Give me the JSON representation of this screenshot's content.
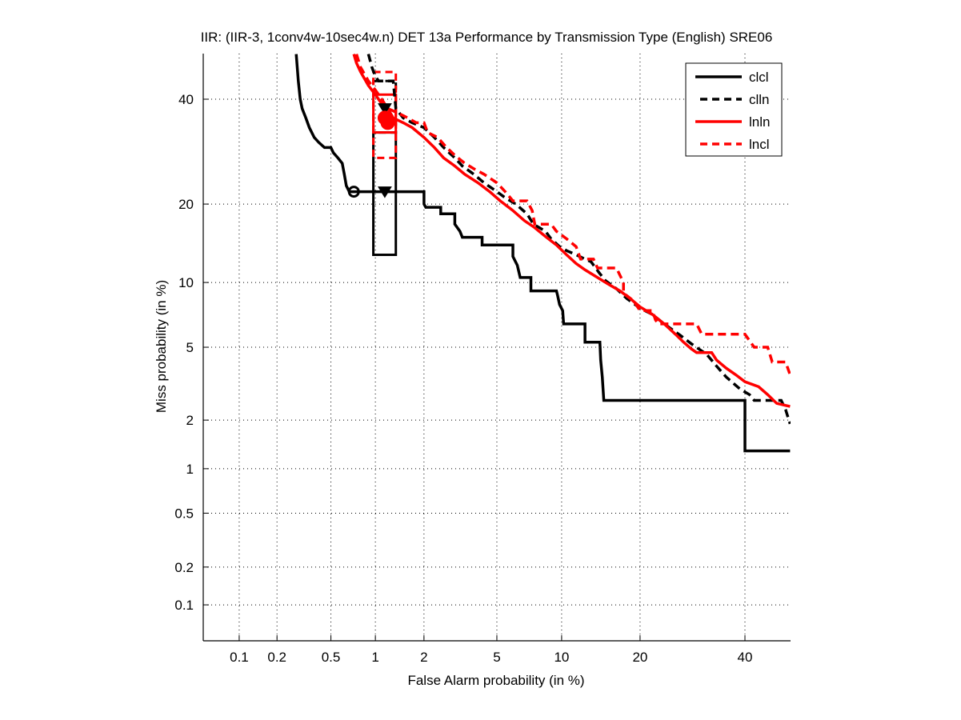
{
  "chart_data": {
    "type": "line",
    "title": "IIR: (IIR-3, 1conv4w-10sec4w.n) DET 13a Performance by Transmission Type (English) SRE06",
    "xlabel": "False Alarm probability (in %)",
    "ylabel": "Miss probability (in %)",
    "xscale": "probit",
    "yscale": "probit",
    "xlim": [
      0.05,
      50
    ],
    "ylim": [
      0.05,
      50
    ],
    "grid": true,
    "legend_position": "top-right",
    "xticks": [
      0.1,
      0.2,
      0.5,
      1,
      2,
      5,
      10,
      20,
      40
    ],
    "xtick_labels": [
      "0.1",
      "0.2",
      "0.5",
      "1",
      "2",
      "5",
      "10",
      "20",
      "40"
    ],
    "yticks": [
      0.1,
      0.2,
      0.5,
      1,
      2,
      5,
      10,
      20,
      40
    ],
    "ytick_labels": [
      "0.1",
      "0.2",
      "0.5",
      "1",
      "2",
      "5",
      "10",
      "20",
      "40"
    ],
    "series": [
      {
        "name": "clcl",
        "color": "#000000",
        "style": "solid",
        "points": [
          [
            0.28,
            50
          ],
          [
            0.29,
            44
          ],
          [
            0.3,
            40
          ],
          [
            0.31,
            38
          ],
          [
            0.33,
            36
          ],
          [
            0.35,
            34
          ],
          [
            0.38,
            32
          ],
          [
            0.41,
            31
          ],
          [
            0.45,
            30
          ],
          [
            0.5,
            30
          ],
          [
            0.52,
            29
          ],
          [
            0.56,
            28
          ],
          [
            0.6,
            27
          ],
          [
            0.62,
            25
          ],
          [
            0.64,
            23
          ],
          [
            0.67,
            22
          ],
          [
            0.7,
            22
          ],
          [
            1.0,
            22
          ],
          [
            1.2,
            22
          ],
          [
            1.4,
            22
          ],
          [
            2.0,
            22
          ],
          [
            2.0,
            20
          ],
          [
            2.05,
            19.5
          ],
          [
            2.5,
            19.5
          ],
          [
            2.5,
            18.5
          ],
          [
            3.0,
            18.5
          ],
          [
            3.0,
            17
          ],
          [
            3.2,
            16
          ],
          [
            3.3,
            15.2
          ],
          [
            4.2,
            15.2
          ],
          [
            4.2,
            14.2
          ],
          [
            6.0,
            14.2
          ],
          [
            6.0,
            12.8
          ],
          [
            6.3,
            11.8
          ],
          [
            6.5,
            10.5
          ],
          [
            7.3,
            10.5
          ],
          [
            7.3,
            9.2
          ],
          [
            9.5,
            9.2
          ],
          [
            9.6,
            8.8
          ],
          [
            9.8,
            8.0
          ],
          [
            10.1,
            7.5
          ],
          [
            10.2,
            6.5
          ],
          [
            12.5,
            6.5
          ],
          [
            12.5,
            5.3
          ],
          [
            14.3,
            5.3
          ],
          [
            14.4,
            4.3
          ],
          [
            14.6,
            3.5
          ],
          [
            14.8,
            2.6
          ],
          [
            20,
            2.6
          ],
          [
            30,
            2.6
          ],
          [
            40,
            2.6
          ],
          [
            40,
            1.3
          ],
          [
            50,
            1.3
          ]
        ]
      },
      {
        "name": "clln",
        "color": "#000000",
        "style": "dashed",
        "points": [
          [
            0.9,
            50
          ],
          [
            0.95,
            47
          ],
          [
            1.0,
            45
          ],
          [
            1.05,
            44
          ],
          [
            1.2,
            44
          ],
          [
            1.3,
            44
          ],
          [
            1.35,
            38
          ],
          [
            1.5,
            36
          ],
          [
            1.7,
            35
          ],
          [
            2.0,
            34
          ],
          [
            2.3,
            32
          ],
          [
            2.6,
            30
          ],
          [
            3.0,
            28
          ],
          [
            3.3,
            26.5
          ],
          [
            3.8,
            25
          ],
          [
            4.3,
            23.5
          ],
          [
            5.0,
            22
          ],
          [
            5.5,
            21
          ],
          [
            6.2,
            20
          ],
          [
            7.0,
            18.5
          ],
          [
            7.5,
            17
          ],
          [
            8.5,
            16
          ],
          [
            9.0,
            15
          ],
          [
            9.8,
            14
          ],
          [
            10.5,
            13.5
          ],
          [
            11.5,
            13
          ],
          [
            12.5,
            12.5
          ],
          [
            13.2,
            12.2
          ],
          [
            14.2,
            11
          ],
          [
            15,
            10.2
          ],
          [
            16.5,
            9.4
          ],
          [
            18,
            8.5
          ],
          [
            20,
            7.7
          ],
          [
            22,
            7.2
          ],
          [
            24,
            6.5
          ],
          [
            27,
            5.7
          ],
          [
            29,
            5.2
          ],
          [
            32,
            4.6
          ],
          [
            34,
            4.0
          ],
          [
            36,
            3.5
          ],
          [
            39,
            3.0
          ],
          [
            41,
            2.8
          ],
          [
            42,
            2.6
          ],
          [
            45,
            2.6
          ],
          [
            48,
            2.6
          ],
          [
            49,
            2.3
          ],
          [
            50,
            1.9
          ]
        ]
      },
      {
        "name": "lnln",
        "color": "#ff0000",
        "style": "solid",
        "points": [
          [
            0.72,
            50
          ],
          [
            0.75,
            48
          ],
          [
            0.8,
            46
          ],
          [
            0.9,
            43
          ],
          [
            1.0,
            41
          ],
          [
            1.1,
            39
          ],
          [
            1.2,
            38
          ],
          [
            1.3,
            36
          ],
          [
            1.5,
            35
          ],
          [
            1.7,
            34
          ],
          [
            2.0,
            32
          ],
          [
            2.3,
            30
          ],
          [
            2.6,
            28
          ],
          [
            3.0,
            26.5
          ],
          [
            3.4,
            25
          ],
          [
            4.0,
            23.5
          ],
          [
            4.6,
            22
          ],
          [
            5.2,
            20.5
          ],
          [
            6.0,
            19
          ],
          [
            6.8,
            17.5
          ],
          [
            7.6,
            16.5
          ],
          [
            8.5,
            15.3
          ],
          [
            9.5,
            14.2
          ],
          [
            10.5,
            13.0
          ],
          [
            11.5,
            12.0
          ],
          [
            12.5,
            11.3
          ],
          [
            14,
            10.5
          ],
          [
            15.5,
            9.8
          ],
          [
            17,
            9.2
          ],
          [
            18.5,
            8.5
          ],
          [
            20,
            7.8
          ],
          [
            22,
            7.2
          ],
          [
            24,
            6.5
          ],
          [
            26,
            5.8
          ],
          [
            27.5,
            5.3
          ],
          [
            29,
            4.9
          ],
          [
            30,
            4.7
          ],
          [
            33,
            4.7
          ],
          [
            34,
            4.3
          ],
          [
            36,
            3.9
          ],
          [
            38,
            3.6
          ],
          [
            40,
            3.3
          ],
          [
            43,
            3.1
          ],
          [
            45,
            2.8
          ],
          [
            47,
            2.5
          ],
          [
            50,
            2.4
          ]
        ]
      },
      {
        "name": "lncl",
        "color": "#ff0000",
        "style": "dashed",
        "points": [
          [
            0.75,
            50
          ],
          [
            0.8,
            47
          ],
          [
            0.9,
            44
          ],
          [
            1.0,
            42
          ],
          [
            1.1,
            40
          ],
          [
            1.2,
            38
          ],
          [
            1.4,
            37
          ],
          [
            1.6,
            36
          ],
          [
            1.8,
            35
          ],
          [
            2.0,
            35
          ],
          [
            2.1,
            33
          ],
          [
            2.4,
            32
          ],
          [
            2.7,
            30
          ],
          [
            3.0,
            28.5
          ],
          [
            3.4,
            27
          ],
          [
            3.8,
            26
          ],
          [
            4.3,
            25
          ],
          [
            5.0,
            23.5
          ],
          [
            5.5,
            22
          ],
          [
            6.0,
            20.5
          ],
          [
            7.0,
            20.5
          ],
          [
            7.4,
            19
          ],
          [
            7.6,
            17
          ],
          [
            9.0,
            17
          ],
          [
            9.5,
            16
          ],
          [
            10.5,
            15
          ],
          [
            11.5,
            14
          ],
          [
            12.0,
            12.5
          ],
          [
            13.5,
            12.5
          ],
          [
            14,
            11.5
          ],
          [
            16.5,
            11.5
          ],
          [
            17.5,
            10
          ],
          [
            17.5,
            9.0
          ],
          [
            19,
            8.3
          ],
          [
            20,
            7.5
          ],
          [
            22,
            7.5
          ],
          [
            22.5,
            6.8
          ],
          [
            23,
            6.5
          ],
          [
            30,
            6.5
          ],
          [
            31,
            5.8
          ],
          [
            40,
            5.8
          ],
          [
            42,
            5.0
          ],
          [
            45,
            5.0
          ],
          [
            46,
            4.2
          ],
          [
            49,
            4.2
          ],
          [
            50,
            3.6
          ]
        ]
      }
    ],
    "markers": [
      {
        "series": "clcl",
        "type": "circle",
        "x": 0.72,
        "y": 22
      },
      {
        "series": "clcl",
        "type": "down-triangle",
        "x": 1.15,
        "y": 22
      },
      {
        "series": "clln",
        "type": "down-triangle",
        "x": 1.15,
        "y": 38
      },
      {
        "series": "lnln",
        "type": "filled-circle",
        "x": 1.15,
        "y": 36
      },
      {
        "series": "lncl",
        "type": "filled-circle",
        "x": 1.2,
        "y": 35
      }
    ],
    "confidence_boxes": [
      {
        "series": "clcl",
        "style": "solid",
        "color": "#000000",
        "x": [
          0.97,
          1.35
        ],
        "y": [
          13,
          33
        ]
      },
      {
        "series": "clln",
        "style": "dashed",
        "color": "#000000",
        "x": [
          0.97,
          1.35
        ],
        "y": [
          33,
          44
        ]
      },
      {
        "series": "lnln",
        "style": "solid",
        "color": "#ff0000",
        "x": [
          0.97,
          1.35
        ],
        "y": [
          33,
          41
        ]
      },
      {
        "series": "lncl",
        "style": "dashed",
        "color": "#ff0000",
        "x": [
          0.97,
          1.35
        ],
        "y": [
          28,
          46
        ]
      }
    ]
  }
}
